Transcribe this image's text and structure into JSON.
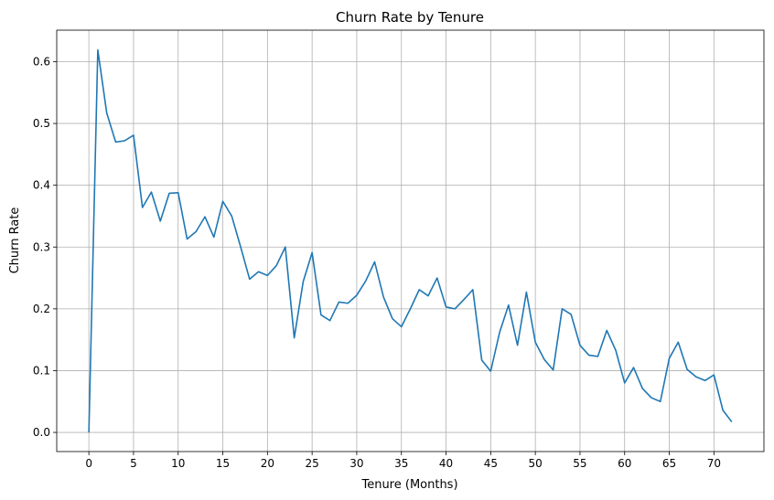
{
  "chart_data": {
    "type": "line",
    "title": "Churn Rate by Tenure",
    "xlabel": "Tenure (Months)",
    "ylabel": "Churn Rate",
    "xlim": [
      -3.6,
      75.6
    ],
    "ylim": [
      -0.031,
      0.651
    ],
    "x_ticks": [
      0,
      5,
      10,
      15,
      20,
      25,
      30,
      35,
      40,
      45,
      50,
      55,
      60,
      65,
      70
    ],
    "y_ticks": [
      0.0,
      0.1,
      0.2,
      0.3,
      0.4,
      0.5,
      0.6
    ],
    "x_tick_labels": [
      "0",
      "5",
      "10",
      "15",
      "20",
      "25",
      "30",
      "35",
      "40",
      "45",
      "50",
      "55",
      "60",
      "65",
      "70"
    ],
    "y_tick_labels": [
      "0.0",
      "0.1",
      "0.2",
      "0.3",
      "0.4",
      "0.5",
      "0.6"
    ],
    "grid": true,
    "line_color": "#1f77b4",
    "grid_color": "#b0b0b0",
    "series": [
      {
        "x": [
          0,
          1,
          2,
          3,
          4,
          5,
          6,
          7,
          8,
          9,
          10,
          11,
          12,
          13,
          14,
          15,
          16,
          17,
          18,
          19,
          20,
          21,
          22,
          23,
          24,
          25,
          26,
          27,
          28,
          29,
          30,
          31,
          32,
          33,
          34,
          35,
          36,
          37,
          38,
          39,
          40,
          41,
          42,
          43,
          44,
          45,
          46,
          47,
          48,
          49,
          50,
          51,
          52,
          53,
          54,
          55,
          56,
          57,
          58,
          59,
          60,
          61,
          62,
          63,
          64,
          65,
          66,
          67,
          68,
          69,
          70,
          71,
          72
        ],
        "values": [
          0.0,
          0.619,
          0.517,
          0.47,
          0.472,
          0.481,
          0.364,
          0.389,
          0.342,
          0.387,
          0.388,
          0.313,
          0.325,
          0.349,
          0.316,
          0.374,
          0.35,
          0.3,
          0.248,
          0.26,
          0.254,
          0.27,
          0.3,
          0.153,
          0.244,
          0.291,
          0.19,
          0.181,
          0.211,
          0.209,
          0.222,
          0.245,
          0.276,
          0.219,
          0.184,
          0.171,
          0.2,
          0.231,
          0.221,
          0.25,
          0.203,
          0.2,
          0.215,
          0.231,
          0.117,
          0.099,
          0.162,
          0.206,
          0.141,
          0.227,
          0.146,
          0.118,
          0.101,
          0.2,
          0.191,
          0.141,
          0.125,
          0.123,
          0.165,
          0.133,
          0.08,
          0.105,
          0.071,
          0.056,
          0.05,
          0.12,
          0.146,
          0.102,
          0.09,
          0.084,
          0.093,
          0.036,
          0.017
        ]
      }
    ]
  }
}
